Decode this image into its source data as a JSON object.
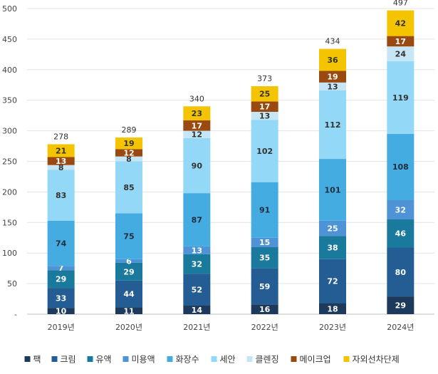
{
  "chart_data": {
    "type": "bar",
    "stacked": true,
    "categories": [
      "2019년",
      "2020년",
      "2021년",
      "2022년",
      "2023년",
      "2024년"
    ],
    "series": [
      {
        "name": "팩",
        "values": [
          10,
          11,
          14,
          16,
          18,
          29
        ],
        "color": "#1d3a5c",
        "label_color": "#ffffff"
      },
      {
        "name": "크림",
        "values": [
          33,
          44,
          52,
          59,
          72,
          80
        ],
        "color": "#245d93",
        "label_color": "#ffffff"
      },
      {
        "name": "유액",
        "values": [
          29,
          29,
          32,
          35,
          38,
          46
        ],
        "color": "#1a7a9e",
        "label_color": "#ffffff"
      },
      {
        "name": "미용액",
        "values": [
          7,
          6,
          13,
          15,
          25,
          32
        ],
        "color": "#4e93d6",
        "label_color": "#ffffff"
      },
      {
        "name": "화장수",
        "values": [
          74,
          75,
          87,
          91,
          101,
          108
        ],
        "color": "#44ace0",
        "label_color": "#1f2d3d"
      },
      {
        "name": "세안",
        "values": [
          83,
          85,
          90,
          102,
          112,
          119
        ],
        "color": "#93d8f7",
        "label_color": "#333333"
      },
      {
        "name": "클렌징",
        "values": [
          8,
          8,
          12,
          13,
          13,
          24
        ],
        "color": "#c6e6f5",
        "label_color": "#333333"
      },
      {
        "name": "메이크업",
        "values": [
          13,
          12,
          17,
          17,
          19,
          17
        ],
        "color": "#9a4a10",
        "label_color": "#ffffff"
      },
      {
        "name": "자외선차단제",
        "values": [
          21,
          19,
          23,
          25,
          36,
          42
        ],
        "color": "#f5c400",
        "label_color": "#333333"
      }
    ],
    "totals": [
      278,
      289,
      340,
      373,
      434,
      497
    ],
    "ylim": [
      0,
      500
    ],
    "yticks": [
      "-",
      "50",
      "100",
      "150",
      "200",
      "250",
      "300",
      "350",
      "400",
      "450",
      "500"
    ],
    "grid": true,
    "legend_position": "bottom",
    "title": "",
    "xlabel": "",
    "ylabel": ""
  }
}
